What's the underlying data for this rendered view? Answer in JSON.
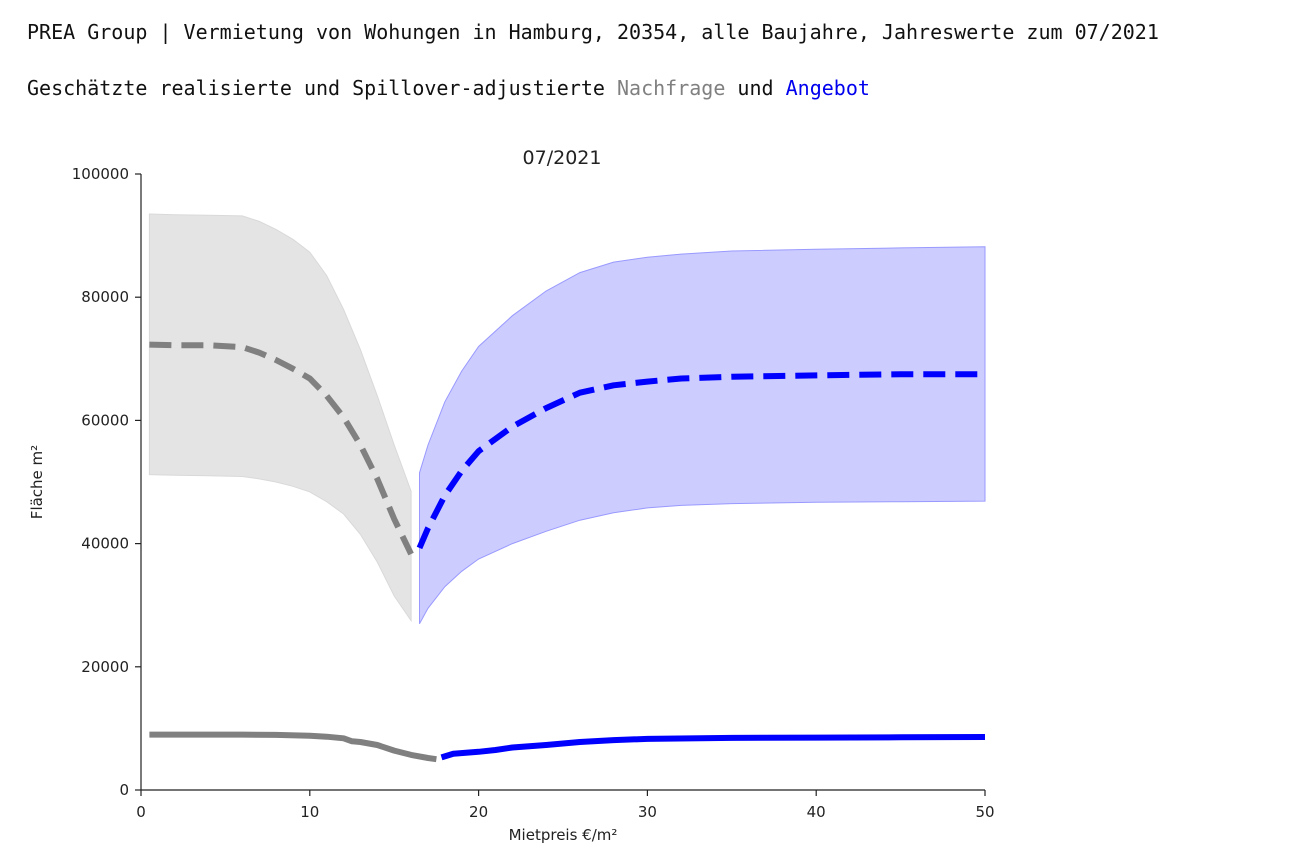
{
  "header": {
    "title": "PREA Group | Vermietung von Wohungen in Hamburg, 20354, alle Baujahre, Jahreswerte zum 07/2021",
    "subtitle_prefix": "Geschätzte realisierte und Spillover-adjustierte ",
    "subtitle_nachfrage": "Nachfrage",
    "subtitle_und": " und ",
    "subtitle_angebot": "Angebot"
  },
  "chart_data": {
    "type": "line",
    "title": "07/2021",
    "xlabel": "Mietpreis €/m²",
    "ylabel": "Fläche m²",
    "xlim": [
      0,
      50
    ],
    "ylim": [
      0,
      100000
    ],
    "xticks": [
      0,
      10,
      20,
      30,
      40,
      50
    ],
    "yticks": [
      0,
      20000,
      40000,
      60000,
      80000,
      100000
    ],
    "grid": false,
    "colors": {
      "nachfrage_line": "#808080",
      "nachfrage_band": "#d9d9d9",
      "angebot_line": "#0000ff",
      "angebot_band": "#9999ff"
    },
    "series": [
      {
        "key": "nachfrage_adjusted",
        "style": "dashed",
        "x": [
          0.5,
          2,
          4,
          6,
          7,
          8,
          9,
          10,
          11,
          12,
          13,
          14,
          15,
          16
        ],
        "y": [
          72300,
          72200,
          72200,
          71900,
          71000,
          69800,
          68400,
          66800,
          64000,
          60500,
          56000,
          50500,
          44000,
          38300
        ],
        "band_low": [
          51200,
          51100,
          51000,
          50900,
          50500,
          50000,
          49300,
          48400,
          46800,
          44800,
          41500,
          37000,
          31500,
          27500
        ],
        "band_high": [
          93500,
          93400,
          93300,
          93200,
          92300,
          91000,
          89400,
          87300,
          83500,
          78000,
          71500,
          64000,
          56000,
          48500
        ]
      },
      {
        "key": "angebot_adjusted",
        "style": "dashed",
        "x": [
          16.5,
          17,
          18,
          19,
          20,
          22,
          24,
          26,
          28,
          30,
          32,
          35,
          40,
          45,
          50
        ],
        "y": [
          39300,
          42500,
          47800,
          51800,
          55000,
          59000,
          62000,
          64500,
          65700,
          66300,
          66800,
          67100,
          67300,
          67500,
          67500
        ],
        "band_low": [
          27000,
          29500,
          33000,
          35500,
          37500,
          40000,
          42000,
          43800,
          45000,
          45800,
          46200,
          46500,
          46700,
          46800,
          46900
        ],
        "band_high": [
          51500,
          56000,
          63000,
          68000,
          72000,
          77000,
          81000,
          84000,
          85700,
          86500,
          87000,
          87500,
          87800,
          88000,
          88200
        ]
      },
      {
        "key": "nachfrage_realized",
        "style": "solid",
        "x": [
          0.5,
          2,
          4,
          6,
          8,
          10,
          11,
          12,
          12.5,
          13,
          14,
          15,
          16,
          17,
          17.5
        ],
        "y": [
          9000,
          9000,
          9000,
          9000,
          8950,
          8800,
          8650,
          8400,
          7900,
          7800,
          7300,
          6400,
          5700,
          5200,
          5000
        ]
      },
      {
        "key": "angebot_realized",
        "style": "solid",
        "x": [
          17.8,
          18.5,
          20,
          21,
          22,
          24,
          26,
          28,
          30,
          35,
          40,
          45,
          50
        ],
        "y": [
          5300,
          5900,
          6200,
          6500,
          6900,
          7300,
          7800,
          8100,
          8300,
          8450,
          8500,
          8550,
          8600
        ]
      }
    ]
  }
}
